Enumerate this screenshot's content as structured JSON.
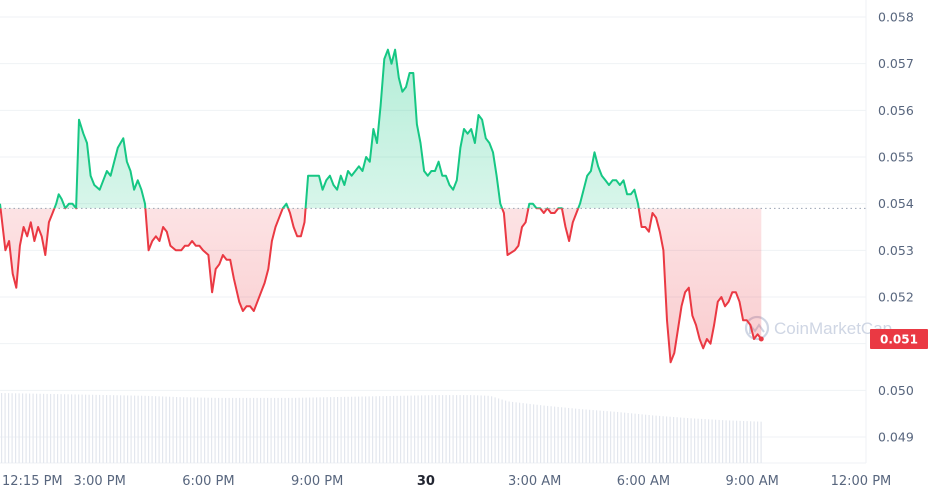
{
  "chart_data": {
    "type": "line",
    "baseline": 0.0539,
    "current_price": 0.0511,
    "current_price_label": "0.051",
    "ylim": [
      0.0484,
      0.0584
    ],
    "y_ticks": [
      0.049,
      0.05,
      0.051,
      0.052,
      0.053,
      0.054,
      0.055,
      0.056,
      0.057,
      0.058
    ],
    "y_tick_labels": [
      "0.049",
      "0.050",
      "0.051",
      "0.052",
      "0.053",
      "0.054",
      "0.055",
      "0.056",
      "0.057",
      "0.058"
    ],
    "x_tick_labels": [
      "12:15 PM",
      "3:00 PM",
      "6:00 PM",
      "9:00 PM",
      "30",
      "3:00 AM",
      "6:00 AM",
      "9:00 AM",
      "12:00 PM"
    ],
    "x_tick_hours": [
      0,
      2.75,
      5.75,
      8.75,
      11.75,
      14.75,
      17.75,
      20.75,
      23.75
    ],
    "x_range_hours": [
      0,
      24
    ],
    "watermark": "CoinMarketCap",
    "colors": {
      "up": "#16c784",
      "down": "#ea3943",
      "grid": "#eff2f5",
      "baseline": "#9aa3b2",
      "volume": "#e3e7ee",
      "text": "#58667e"
    },
    "price_series": [
      [
        0.0,
        0.054
      ],
      [
        0.15,
        0.053
      ],
      [
        0.25,
        0.0532
      ],
      [
        0.35,
        0.0525
      ],
      [
        0.45,
        0.0522
      ],
      [
        0.55,
        0.0531
      ],
      [
        0.65,
        0.0535
      ],
      [
        0.75,
        0.0533
      ],
      [
        0.85,
        0.0536
      ],
      [
        0.95,
        0.0532
      ],
      [
        1.05,
        0.0535
      ],
      [
        1.15,
        0.0533
      ],
      [
        1.25,
        0.0529
      ],
      [
        1.35,
        0.0536
      ],
      [
        1.45,
        0.0538
      ],
      [
        1.55,
        0.054
      ],
      [
        1.62,
        0.0542
      ],
      [
        1.7,
        0.0541
      ],
      [
        1.8,
        0.0539
      ],
      [
        1.9,
        0.054
      ],
      [
        2.0,
        0.054
      ],
      [
        2.1,
        0.0539
      ],
      [
        2.18,
        0.0558
      ],
      [
        2.3,
        0.0555
      ],
      [
        2.4,
        0.0553
      ],
      [
        2.5,
        0.0546
      ],
      [
        2.6,
        0.0544
      ],
      [
        2.75,
        0.0543
      ],
      [
        2.85,
        0.0545
      ],
      [
        2.95,
        0.0547
      ],
      [
        3.05,
        0.0546
      ],
      [
        3.15,
        0.0549
      ],
      [
        3.25,
        0.0552
      ],
      [
        3.4,
        0.0554
      ],
      [
        3.5,
        0.0549
      ],
      [
        3.6,
        0.0547
      ],
      [
        3.7,
        0.0543
      ],
      [
        3.8,
        0.0545
      ],
      [
        3.9,
        0.0543
      ],
      [
        4.0,
        0.054
      ],
      [
        4.1,
        0.053
      ],
      [
        4.2,
        0.0532
      ],
      [
        4.3,
        0.0533
      ],
      [
        4.4,
        0.0532
      ],
      [
        4.5,
        0.0535
      ],
      [
        4.6,
        0.0534
      ],
      [
        4.7,
        0.0531
      ],
      [
        4.85,
        0.053
      ],
      [
        5.0,
        0.053
      ],
      [
        5.1,
        0.0531
      ],
      [
        5.2,
        0.0531
      ],
      [
        5.3,
        0.0532
      ],
      [
        5.4,
        0.0531
      ],
      [
        5.5,
        0.0531
      ],
      [
        5.6,
        0.053
      ],
      [
        5.75,
        0.0529
      ],
      [
        5.85,
        0.0521
      ],
      [
        5.95,
        0.0526
      ],
      [
        6.05,
        0.0527
      ],
      [
        6.15,
        0.0529
      ],
      [
        6.25,
        0.0528
      ],
      [
        6.35,
        0.0528
      ],
      [
        6.45,
        0.0524
      ],
      [
        6.6,
        0.0519
      ],
      [
        6.7,
        0.0517
      ],
      [
        6.8,
        0.0518
      ],
      [
        6.9,
        0.0518
      ],
      [
        7.0,
        0.0517
      ],
      [
        7.1,
        0.0519
      ],
      [
        7.2,
        0.0521
      ],
      [
        7.3,
        0.0523
      ],
      [
        7.4,
        0.0526
      ],
      [
        7.5,
        0.0532
      ],
      [
        7.6,
        0.0535
      ],
      [
        7.7,
        0.0537
      ],
      [
        7.8,
        0.0539
      ],
      [
        7.9,
        0.054
      ],
      [
        8.0,
        0.0538
      ],
      [
        8.1,
        0.0535
      ],
      [
        8.2,
        0.0533
      ],
      [
        8.3,
        0.0533
      ],
      [
        8.4,
        0.0536
      ],
      [
        8.5,
        0.0546
      ],
      [
        8.6,
        0.0546
      ],
      [
        8.7,
        0.0546
      ],
      [
        8.8,
        0.0546
      ],
      [
        8.9,
        0.0543
      ],
      [
        9.0,
        0.0545
      ],
      [
        9.1,
        0.0546
      ],
      [
        9.2,
        0.0544
      ],
      [
        9.3,
        0.0543
      ],
      [
        9.4,
        0.0546
      ],
      [
        9.5,
        0.0544
      ],
      [
        9.6,
        0.0547
      ],
      [
        9.7,
        0.0546
      ],
      [
        9.8,
        0.0547
      ],
      [
        9.9,
        0.0548
      ],
      [
        10.0,
        0.0547
      ],
      [
        10.1,
        0.055
      ],
      [
        10.2,
        0.0549
      ],
      [
        10.3,
        0.0556
      ],
      [
        10.4,
        0.0553
      ],
      [
        10.5,
        0.0561
      ],
      [
        10.6,
        0.0571
      ],
      [
        10.7,
        0.0573
      ],
      [
        10.8,
        0.057
      ],
      [
        10.9,
        0.0573
      ],
      [
        11.0,
        0.0567
      ],
      [
        11.1,
        0.0564
      ],
      [
        11.2,
        0.0565
      ],
      [
        11.3,
        0.0568
      ],
      [
        11.4,
        0.0568
      ],
      [
        11.5,
        0.0557
      ],
      [
        11.6,
        0.0553
      ],
      [
        11.7,
        0.0547
      ],
      [
        11.8,
        0.0546
      ],
      [
        11.9,
        0.0547
      ],
      [
        12.0,
        0.0547
      ],
      [
        12.1,
        0.0549
      ],
      [
        12.2,
        0.0546
      ],
      [
        12.3,
        0.0546
      ],
      [
        12.4,
        0.0544
      ],
      [
        12.5,
        0.0543
      ],
      [
        12.6,
        0.0545
      ],
      [
        12.7,
        0.0552
      ],
      [
        12.8,
        0.0556
      ],
      [
        12.9,
        0.0555
      ],
      [
        13.0,
        0.0556
      ],
      [
        13.1,
        0.0553
      ],
      [
        13.2,
        0.0559
      ],
      [
        13.3,
        0.0558
      ],
      [
        13.4,
        0.0554
      ],
      [
        13.5,
        0.0553
      ],
      [
        13.6,
        0.0551
      ],
      [
        13.7,
        0.0546
      ],
      [
        13.8,
        0.054
      ],
      [
        13.9,
        0.0538
      ],
      [
        14.0,
        0.0529
      ],
      [
        14.2,
        0.053
      ],
      [
        14.3,
        0.0531
      ],
      [
        14.4,
        0.0535
      ],
      [
        14.5,
        0.0536
      ],
      [
        14.6,
        0.054
      ],
      [
        14.7,
        0.054
      ],
      [
        14.8,
        0.0539
      ],
      [
        14.9,
        0.0539
      ],
      [
        15.0,
        0.0538
      ],
      [
        15.1,
        0.0539
      ],
      [
        15.2,
        0.0538
      ],
      [
        15.3,
        0.0538
      ],
      [
        15.4,
        0.0539
      ],
      [
        15.5,
        0.0539
      ],
      [
        15.6,
        0.0535
      ],
      [
        15.7,
        0.0532
      ],
      [
        15.8,
        0.0536
      ],
      [
        15.9,
        0.0538
      ],
      [
        16.0,
        0.054
      ],
      [
        16.1,
        0.0543
      ],
      [
        16.2,
        0.0546
      ],
      [
        16.3,
        0.0547
      ],
      [
        16.4,
        0.0551
      ],
      [
        16.5,
        0.0548
      ],
      [
        16.6,
        0.0546
      ],
      [
        16.7,
        0.0545
      ],
      [
        16.8,
        0.0544
      ],
      [
        16.9,
        0.0545
      ],
      [
        17.0,
        0.0545
      ],
      [
        17.1,
        0.0544
      ],
      [
        17.2,
        0.0545
      ],
      [
        17.3,
        0.0542
      ],
      [
        17.4,
        0.0542
      ],
      [
        17.5,
        0.0543
      ],
      [
        17.6,
        0.054
      ],
      [
        17.7,
        0.0535
      ],
      [
        17.8,
        0.0535
      ],
      [
        17.9,
        0.0534
      ],
      [
        18.0,
        0.0538
      ],
      [
        18.1,
        0.0537
      ],
      [
        18.2,
        0.0534
      ],
      [
        18.3,
        0.053
      ],
      [
        18.4,
        0.0515
      ],
      [
        18.5,
        0.0506
      ],
      [
        18.6,
        0.0508
      ],
      [
        18.7,
        0.0513
      ],
      [
        18.8,
        0.0518
      ],
      [
        18.9,
        0.0521
      ],
      [
        19.0,
        0.0522
      ],
      [
        19.1,
        0.0516
      ],
      [
        19.2,
        0.0514
      ],
      [
        19.3,
        0.0511
      ],
      [
        19.4,
        0.0509
      ],
      [
        19.5,
        0.0511
      ],
      [
        19.6,
        0.051
      ],
      [
        19.7,
        0.0514
      ],
      [
        19.8,
        0.0519
      ],
      [
        19.9,
        0.052
      ],
      [
        20.0,
        0.0518
      ],
      [
        20.1,
        0.0519
      ],
      [
        20.2,
        0.0521
      ],
      [
        20.3,
        0.0521
      ],
      [
        20.4,
        0.0519
      ],
      [
        20.5,
        0.0515
      ],
      [
        20.6,
        0.0515
      ],
      [
        20.7,
        0.0514
      ],
      [
        20.8,
        0.0511
      ],
      [
        20.9,
        0.0512
      ],
      [
        21.0,
        0.0511
      ]
    ],
    "volume_series_relative": [
      [
        0.0,
        1.0
      ],
      [
        1.0,
        0.99
      ],
      [
        2.0,
        0.98
      ],
      [
        3.0,
        0.97
      ],
      [
        4.0,
        0.96
      ],
      [
        5.0,
        0.94
      ],
      [
        6.0,
        0.93
      ],
      [
        7.0,
        0.93
      ],
      [
        8.0,
        0.93
      ],
      [
        9.0,
        0.94
      ],
      [
        10.0,
        0.95
      ],
      [
        11.0,
        0.96
      ],
      [
        12.0,
        0.97
      ],
      [
        13.0,
        0.97
      ],
      [
        13.5,
        0.96
      ],
      [
        14.0,
        0.88
      ],
      [
        15.0,
        0.82
      ],
      [
        16.0,
        0.77
      ],
      [
        17.0,
        0.73
      ],
      [
        18.0,
        0.68
      ],
      [
        19.0,
        0.64
      ],
      [
        20.0,
        0.61
      ],
      [
        21.0,
        0.59
      ]
    ]
  }
}
